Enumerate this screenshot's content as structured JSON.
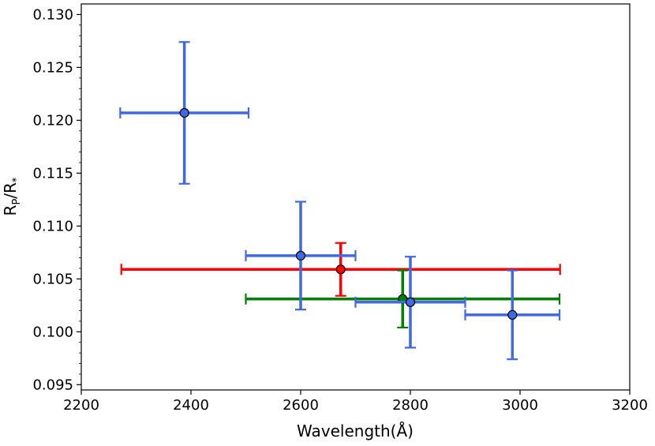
{
  "chart_data": {
    "type": "scatter",
    "title": "",
    "xlabel": "Wavelength(Å)",
    "ylabel_main": "R",
    "ylabel_sub1": "P",
    "ylabel_mid": "/R",
    "ylabel_sub2": "*",
    "xlim": [
      2200,
      3200
    ],
    "ylim": [
      0.0945,
      0.131
    ],
    "grid": false,
    "xticks": [
      2200,
      2400,
      2600,
      2800,
      3000,
      3200
    ],
    "xtick_labels": [
      "2200",
      "2400",
      "2600",
      "2800",
      "3000",
      "3200"
    ],
    "yticks": [
      0.095,
      0.1,
      0.105,
      0.11,
      0.115,
      0.12,
      0.125,
      0.13
    ],
    "ytick_labels": [
      "0.095",
      "0.100",
      "0.105",
      "0.110",
      "0.115",
      "0.120",
      "0.125",
      "0.130"
    ],
    "series": [
      {
        "color": "#ff0000",
        "points": [
          {
            "x": 2673,
            "y": 0.1059,
            "xerr": [
              400,
              400
            ],
            "yerr": [
              0.0025,
              0.0025
            ]
          }
        ]
      },
      {
        "color": "#008000",
        "points": [
          {
            "x": 2786,
            "y": 0.1031,
            "xerr": [
              286,
              286
            ],
            "yerr": [
              0.0027,
              0.0027
            ]
          }
        ]
      },
      {
        "color": "#4169e1",
        "points": [
          {
            "x": 2388,
            "y": 0.1207,
            "xerr": [
              117,
              117
            ],
            "yerr": [
              0.0067,
              0.0067
            ]
          },
          {
            "x": 2600,
            "y": 0.1072,
            "xerr": [
              100,
              100
            ],
            "yerr": [
              0.0051,
              0.0051
            ]
          },
          {
            "x": 2800,
            "y": 0.1028,
            "xerr": [
              100,
              100
            ],
            "yerr": [
              0.0043,
              0.0043
            ]
          },
          {
            "x": 2986,
            "y": 0.1016,
            "xerr": [
              86,
              86
            ],
            "yerr": [
              0.0042,
              0.0042
            ]
          }
        ]
      }
    ]
  }
}
